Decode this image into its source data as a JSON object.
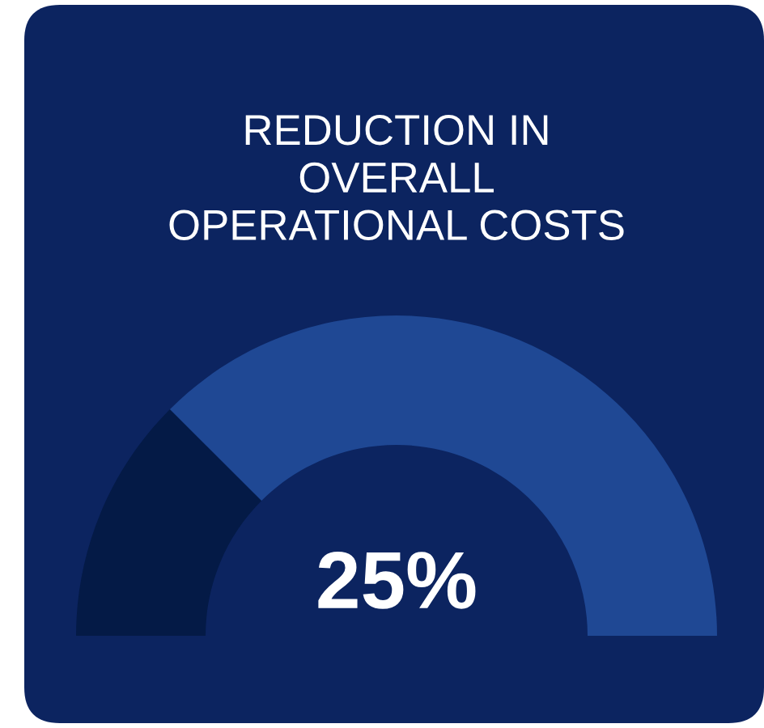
{
  "chart_data": {
    "type": "donut",
    "title": "REDUCTION IN\nOVERALL\nOPERATIONAL COSTS",
    "categories": [
      null,
      null
    ],
    "values": [
      25,
      75
    ],
    "colors": [
      "#041a46",
      "#1f4894"
    ],
    "annotations": [
      "25%"
    ],
    "legend": false
  }
}
